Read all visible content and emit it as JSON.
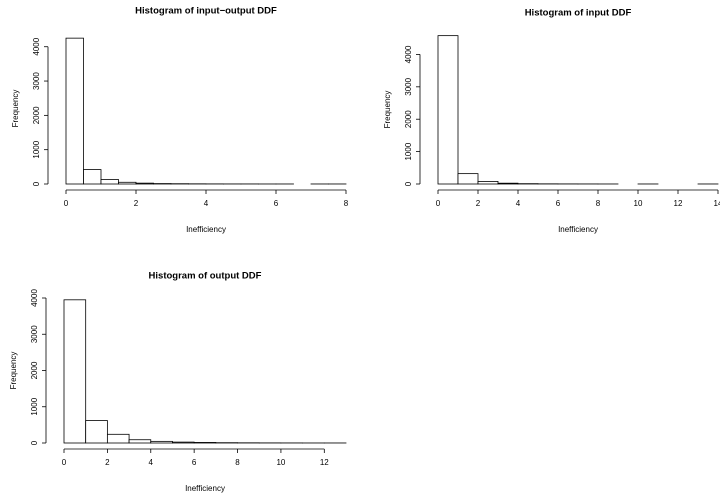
{
  "chart_data": [
    {
      "type": "histogram",
      "title": "Histogram of input−output DDF",
      "x_label": "Inefficiency",
      "y_label": "Frequency",
      "bins": [
        0,
        0.5,
        1,
        1.5,
        2,
        2.5,
        3,
        3.5,
        4,
        4.5,
        5,
        5.5,
        6,
        6.5,
        7,
        7.5,
        8
      ],
      "values": [
        4250,
        420,
        130,
        50,
        25,
        12,
        8,
        5,
        3,
        2,
        2,
        1,
        1,
        0,
        1,
        1
      ],
      "color": "#ffffff",
      "edgecolor": "#000000",
      "xlim": [
        0,
        8
      ],
      "xticks": [
        0,
        2,
        4,
        6,
        8
      ],
      "ylim": [
        0,
        4400
      ],
      "yticks": [
        0,
        1000,
        2000,
        3000,
        4000
      ]
    },
    {
      "type": "histogram",
      "title": "Histogram of input DDF",
      "x_label": "Inefficiency",
      "y_label": "Frequency",
      "bins": [
        0,
        1,
        2,
        3,
        4,
        5,
        6,
        7,
        8,
        9,
        10,
        11,
        12,
        13,
        14
      ],
      "values": [
        4580,
        320,
        80,
        25,
        10,
        5,
        3,
        2,
        1,
        0,
        1,
        0,
        0,
        1
      ],
      "color": "#ffffff",
      "edgecolor": "#000000",
      "xlim": [
        0,
        14
      ],
      "xticks": [
        0,
        2,
        4,
        6,
        8,
        10,
        12,
        14
      ],
      "ylim": [
        0,
        4600
      ],
      "yticks": [
        0,
        1000,
        2000,
        3000,
        4000
      ]
    },
    {
      "type": "histogram",
      "title": "Histogram of output DDF",
      "x_label": "Inefficiency",
      "y_label": "Frequency",
      "bins": [
        0,
        1,
        2,
        3,
        4,
        5,
        6,
        7,
        8,
        9,
        10,
        11,
        12,
        13
      ],
      "values": [
        3950,
        620,
        240,
        90,
        45,
        25,
        15,
        8,
        5,
        3,
        2,
        1,
        1
      ],
      "color": "#ffffff",
      "edgecolor": "#000000",
      "xlim": [
        0,
        13
      ],
      "xticks": [
        0,
        2,
        4,
        6,
        8,
        10,
        12
      ],
      "ylim": [
        0,
        4000
      ],
      "yticks": [
        0,
        1000,
        2000,
        3000,
        4000
      ]
    }
  ]
}
